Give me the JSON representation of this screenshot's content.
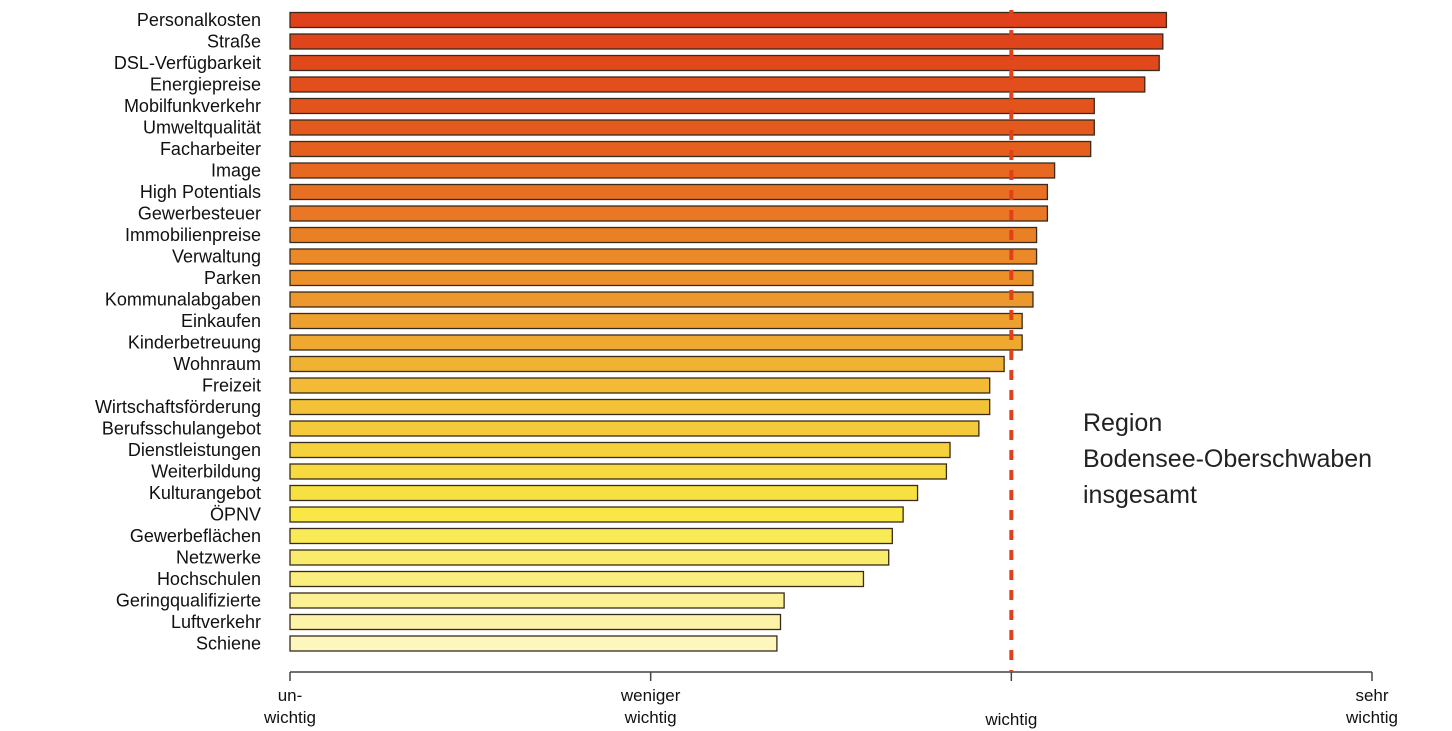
{
  "chart_data": {
    "type": "bar",
    "orientation": "horizontal",
    "categories": [
      "Personalkosten",
      "Straße",
      "DSL-Verfügbarkeit",
      "Energiepreise",
      "Mobilfunkverkehr",
      "Umweltqualität",
      "Facharbeiter",
      "Image",
      "High Potentials",
      "Gewerbesteuer",
      "Immobilienpreise",
      "Verwaltung",
      "Parken",
      "Kommunalabgaben",
      "Einkaufen",
      "Kinderbetreuung",
      "Wohnraum",
      "Freizeit",
      "Wirtschaftsförderung",
      "Berufsschulangebot",
      "Dienstleistungen",
      "Weiterbildung",
      "Kulturangebot",
      "ÖPNV",
      "Gewerbeflächen",
      "Netzwerke",
      "Hochschulen",
      "Geringqualifizierte",
      "Luftverkehr",
      "Schiene"
    ],
    "values": [
      3.43,
      3.42,
      3.41,
      3.37,
      3.23,
      3.23,
      3.22,
      3.12,
      3.1,
      3.1,
      3.07,
      3.07,
      3.06,
      3.06,
      3.03,
      3.03,
      2.98,
      2.94,
      2.94,
      2.91,
      2.83,
      2.82,
      2.74,
      2.7,
      2.67,
      2.66,
      2.59,
      2.37,
      2.36,
      2.35
    ],
    "colors": [
      "#e0401a",
      "#e0441a",
      "#e1481b",
      "#e24e1c",
      "#e3541d",
      "#e45a1e",
      "#e5601f",
      "#e66821",
      "#e87023",
      "#e97725",
      "#ea8026",
      "#eb8828",
      "#ec902a",
      "#ed982c",
      "#eea12e",
      "#efa930",
      "#f0b233",
      "#f2ba35",
      "#f3c237",
      "#f4ca3a",
      "#f5d23c",
      "#f6da3f",
      "#f7e141",
      "#f8e744",
      "#f9ea57",
      "#f9ec6a",
      "#faee7e",
      "#fbf093",
      "#fcf3a8",
      "#fdf6bd"
    ],
    "xlim": [
      1,
      4
    ],
    "x_ticks": [
      {
        "value": 1,
        "label_lines": [
          "un-",
          "wichtig"
        ]
      },
      {
        "value": 2,
        "label_lines": [
          "weniger",
          "wichtig"
        ]
      },
      {
        "value": 3,
        "label_lines": [
          "wichtig"
        ]
      },
      {
        "value": 4,
        "label_lines": [
          "sehr",
          "wichtig"
        ]
      }
    ],
    "reference_line": {
      "value": 3,
      "color": "#e0401a",
      "style": "dashed"
    },
    "annotation_lines": [
      "Region",
      "Bodensee-Oberschwaben",
      "insgesamt"
    ],
    "grid": false,
    "legend": "none",
    "title": "",
    "xlabel": "",
    "ylabel": ""
  }
}
